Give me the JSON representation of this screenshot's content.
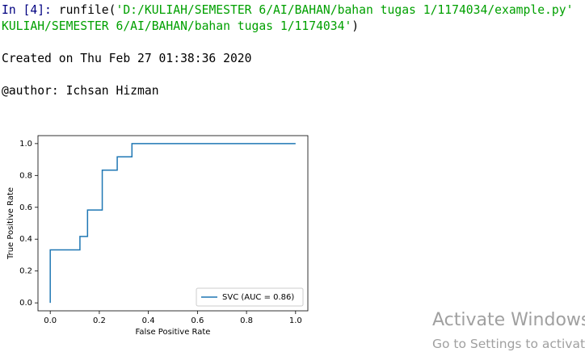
{
  "console": {
    "line1": {
      "prompt": "In [4]:",
      "code": "runfile(",
      "string": "'D:/KULIAH/SEMESTER 6/AI/BAHAN/bahan tugas 1/1174034/example.py'"
    },
    "line2": {
      "string": "KULIAH/SEMESTER 6/AI/BAHAN/bahan tugas 1/1174034'",
      "code": ")"
    },
    "created": "Created on Thu Feb 27 01:38:36 2020",
    "author": "@author: Ichsan Hizman"
  },
  "chart_data": {
    "type": "line",
    "xlabel": "False Positive Rate",
    "ylabel": "True Positive Rate",
    "x": [
      0,
      0,
      0.121,
      0.121,
      0.152,
      0.152,
      0.212,
      0.212,
      0.273,
      0.273,
      0.333,
      0.333,
      1
    ],
    "series": [
      {
        "name": "SVC (AUC = 0.86)",
        "color": "#1f77b4",
        "values": [
          0,
          0.333,
          0.333,
          0.417,
          0.417,
          0.583,
          0.583,
          0.833,
          0.833,
          0.917,
          0.917,
          1,
          1
        ]
      }
    ],
    "xlim": [
      -0.05,
      1.05
    ],
    "ylim": [
      -0.05,
      1.05
    ],
    "xticks": [
      {
        "value": 0,
        "label": "0.0"
      },
      {
        "value": 0.2,
        "label": "0.2"
      },
      {
        "value": 0.4,
        "label": "0.4"
      },
      {
        "value": 0.6,
        "label": "0.6"
      },
      {
        "value": 0.8,
        "label": "0.8"
      },
      {
        "value": 1,
        "label": "1.0"
      }
    ],
    "yticks": [
      {
        "value": 0,
        "label": "0.0"
      },
      {
        "value": 0.2,
        "label": "0.2"
      },
      {
        "value": 0.4,
        "label": "0.4"
      },
      {
        "value": 0.6,
        "label": "0.6"
      },
      {
        "value": 0.8,
        "label": "0.8"
      },
      {
        "value": 1,
        "label": "1.0"
      }
    ],
    "legend": "lower right"
  },
  "watermark": {
    "title": "Activate Windows",
    "subtitle": "Go to Settings to activate Windows."
  }
}
